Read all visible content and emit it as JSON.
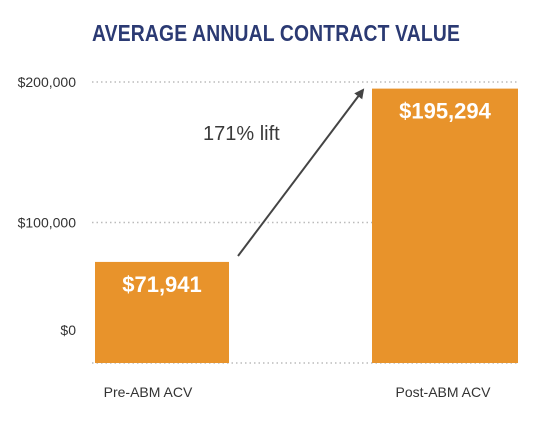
{
  "chart_data": {
    "type": "bar",
    "title": "AVERAGE ANNUAL CONTRACT VALUE",
    "categories": [
      "Pre-ABM ACV",
      "Post-ABM ACV"
    ],
    "values": [
      71941,
      195294
    ],
    "value_labels": [
      "$71,941",
      "$195,294"
    ],
    "y_ticks": [
      {
        "value": 0,
        "label": "$0"
      },
      {
        "value": 100000,
        "label": "$100,000"
      },
      {
        "value": 200000,
        "label": "$200,000"
      }
    ],
    "ylim": [
      0,
      200000
    ],
    "grid": "horizontal dotted",
    "annotation": {
      "text": "171% lift",
      "arrow_from": "Pre-ABM ACV",
      "arrow_to": "Post-ABM ACV"
    },
    "colors": {
      "bar": "#e8932b",
      "title": "#2b3a73",
      "grid": "#bbbbbb",
      "arrow": "#444444"
    }
  }
}
